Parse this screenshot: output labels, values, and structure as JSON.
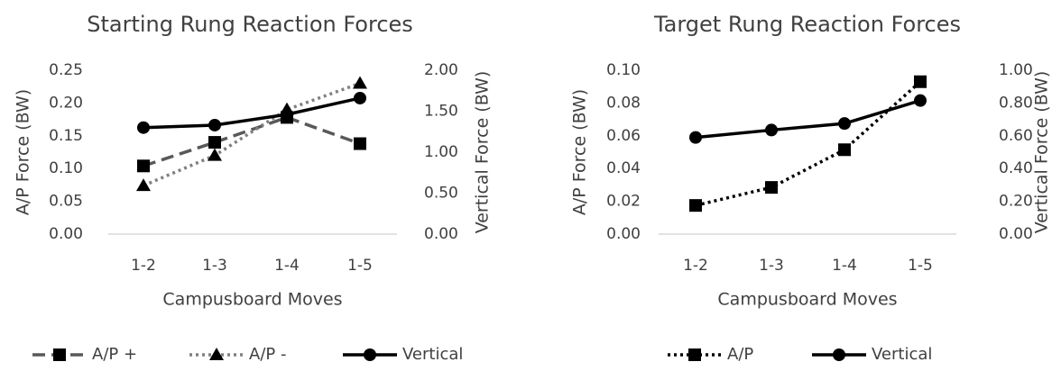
{
  "chart_data": [
    {
      "type": "line",
      "title": "Starting Rung Reaction Forces",
      "xlabel": "Campusboard Moves",
      "ylabel": "A/P Force (BW)",
      "y2label": "Vertical Force (BW)",
      "categories": [
        "1-2",
        "1-3",
        "1-4",
        "1-5"
      ],
      "ylim": [
        0,
        0.25
      ],
      "y2lim": [
        0,
        2.0
      ],
      "yticks": [
        "0.00",
        "0.05",
        "0.10",
        "0.15",
        "0.20",
        "0.25"
      ],
      "y2ticks": [
        "0.00",
        "0.50",
        "1.00",
        "1.50",
        "2.00"
      ],
      "grid": false,
      "legend_position": "bottom",
      "series": [
        {
          "name": "A/P +",
          "axis": "left",
          "values": [
            0.104,
            0.14,
            0.178,
            0.138
          ],
          "dash": "dashed",
          "marker": "square",
          "color": "#595959"
        },
        {
          "name": "A/P -",
          "axis": "left",
          "values": [
            0.074,
            0.12,
            0.19,
            0.23
          ],
          "dash": "dotted",
          "marker": "triangle",
          "color": "#808080"
        },
        {
          "name": "Vertical",
          "axis": "right",
          "values": [
            1.3,
            1.33,
            1.46,
            1.66
          ],
          "dash": "solid",
          "marker": "circle",
          "color": "#000000"
        }
      ]
    },
    {
      "type": "line",
      "title": "Target Rung Reaction Forces",
      "xlabel": "Campusboard Moves",
      "ylabel": "A/P Force (BW)",
      "y2label": "Vertical Force (BW)",
      "categories": [
        "1-2",
        "1-3",
        "1-4",
        "1-5"
      ],
      "ylim": [
        0,
        0.1
      ],
      "y2lim": [
        0,
        1.0
      ],
      "yticks": [
        "0.00",
        "0.02",
        "0.04",
        "0.06",
        "0.08",
        "0.10"
      ],
      "y2ticks": [
        "0.00",
        "0.20",
        "0.40",
        "0.60",
        "0.80",
        "1.00"
      ],
      "grid": false,
      "legend_position": "bottom",
      "series": [
        {
          "name": "A/P",
          "axis": "left",
          "values": [
            0.0175,
            0.0285,
            0.0515,
            0.093
          ],
          "dash": "dotted",
          "marker": "square",
          "color": "#000000"
        },
        {
          "name": "Vertical",
          "axis": "right",
          "values": [
            0.59,
            0.635,
            0.675,
            0.815
          ],
          "dash": "solid",
          "marker": "circle",
          "color": "#000000"
        }
      ]
    }
  ]
}
